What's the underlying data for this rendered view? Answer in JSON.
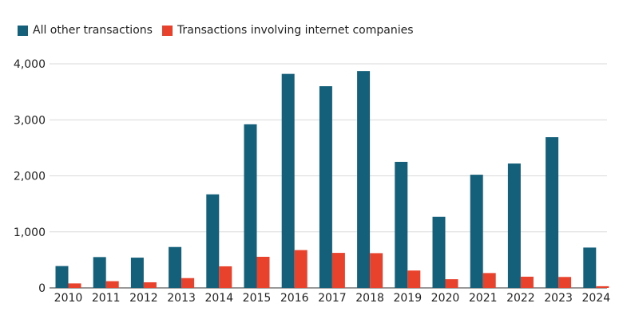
{
  "chart_data": {
    "type": "bar",
    "title": "",
    "xlabel": "",
    "ylabel": "",
    "categories": [
      "2010",
      "2011",
      "2012",
      "2013",
      "2014",
      "2015",
      "2016",
      "2017",
      "2018",
      "2019",
      "2020",
      "2021",
      "2022",
      "2023",
      "2024"
    ],
    "series": [
      {
        "name": "All other transactions",
        "color": "#14607a",
        "values": [
          390,
          550,
          540,
          730,
          1670,
          2920,
          3820,
          3600,
          3870,
          2250,
          1270,
          2020,
          2220,
          2690,
          720
        ]
      },
      {
        "name": "Transactions involving internet companies",
        "color": "#e8412c",
        "values": [
          80,
          120,
          100,
          175,
          385,
          555,
          675,
          625,
          620,
          310,
          155,
          265,
          200,
          195,
          30
        ]
      }
    ],
    "ylim": [
      0,
      4000
    ],
    "yticks": [
      0,
      1000,
      2000,
      3000,
      4000
    ],
    "ytick_labels": [
      "0",
      "1,000",
      "2,000",
      "3,000",
      "4,000"
    ],
    "grid": true,
    "legend_position": "top-left"
  }
}
